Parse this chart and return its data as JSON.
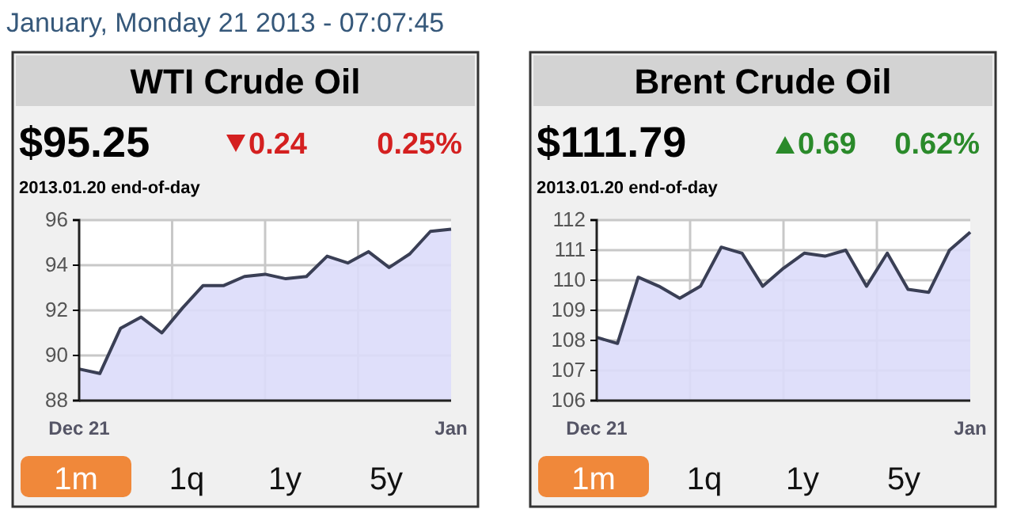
{
  "chart_data": [
    {
      "type": "area",
      "title": "WTI Crude Oil",
      "categories": [
        "Dec 21",
        null,
        null,
        null,
        null,
        null,
        null,
        null,
        null,
        null,
        null,
        null,
        null,
        null,
        null,
        null,
        null,
        null,
        "Jan"
      ],
      "values": [
        89.4,
        89.2,
        91.2,
        91.7,
        91.0,
        92.1,
        93.1,
        93.1,
        93.5,
        93.6,
        93.4,
        93.5,
        94.4,
        94.1,
        94.6,
        93.9,
        94.5,
        95.5,
        95.6
      ],
      "color": "#3a3f55",
      "ylim": [
        88,
        96
      ],
      "yticks": [
        88,
        90,
        92,
        94,
        96
      ],
      "grid": true,
      "annotations": [
        "January, Monday 21 2013 - 07:07:45",
        "$95.25",
        "0.24",
        "0.25%",
        "2013.01.20 end-of-day",
        "1m",
        "1q",
        "1y",
        "5y"
      ]
    },
    {
      "type": "area",
      "title": "Brent Crude Oil",
      "categories": [
        "Dec 21",
        null,
        null,
        null,
        null,
        null,
        null,
        null,
        null,
        null,
        null,
        null,
        null,
        null,
        null,
        null,
        null,
        null,
        "Jan"
      ],
      "values": [
        108.1,
        107.9,
        110.1,
        109.8,
        109.4,
        109.8,
        111.1,
        110.9,
        109.8,
        110.4,
        110.9,
        110.8,
        111.0,
        109.8,
        110.9,
        109.7,
        109.6,
        111.0,
        111.6
      ],
      "color": "#3a3f55",
      "ylim": [
        106,
        112
      ],
      "yticks": [
        106,
        107,
        108,
        109,
        110,
        111,
        112
      ],
      "grid": true,
      "annotations": [
        "$111.79",
        "0.69",
        "0.62%",
        "2013.01.20 end-of-day",
        "1m",
        "1q",
        "1y",
        "5y"
      ]
    }
  ]
}
